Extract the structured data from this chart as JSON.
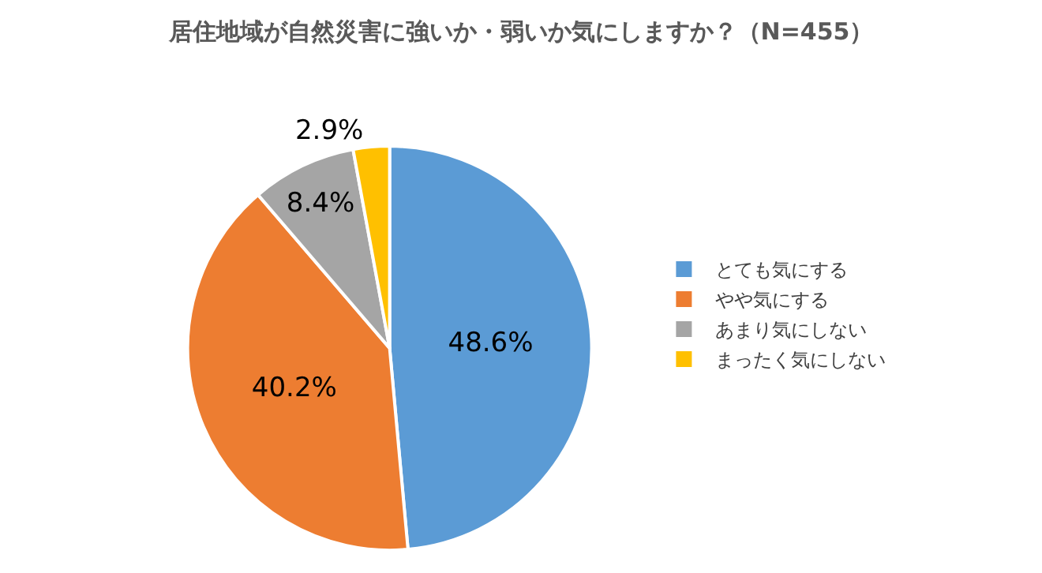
{
  "chart_data": {
    "type": "pie",
    "title": "居住地域が自然災害に強いか・弱いか気にしますか？（N=455）",
    "categories": [
      "とても気にする",
      "やや気にする",
      "あまり気にしない",
      "まったく気にしない"
    ],
    "values": [
      48.6,
      40.2,
      8.4,
      2.9
    ],
    "colors": [
      "#5b9bd5",
      "#ed7d31",
      "#a5a5a5",
      "#ffc000"
    ],
    "value_labels": [
      "48.6%",
      "40.2%",
      "8.4%",
      "2.9%"
    ],
    "legend": "right"
  }
}
